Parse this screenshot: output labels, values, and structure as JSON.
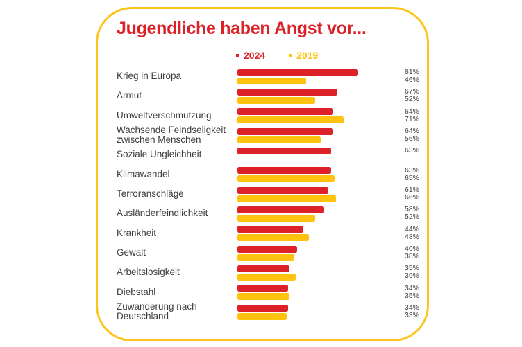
{
  "card": {
    "border_color": "#FCC41D",
    "background": "#FFFFFF"
  },
  "chart": {
    "title": "Jugendliche haben Angst vor...",
    "title_color": "#DC2128",
    "legend": [
      {
        "label": "2024",
        "color": "#DC2128"
      },
      {
        "label": "2019",
        "color": "#FFC20E"
      }
    ],
    "text_color": "#3E3E3D"
  },
  "chart_data": {
    "type": "bar",
    "orientation": "horizontal",
    "title": "Jugendliche haben Angst vor...",
    "categories": [
      "Krieg in Europa",
      "Armut",
      "Umweltverschmutzung",
      "Wachsende Feindseligkeit\nzwischen Menschen",
      "Soziale Ungleichheit",
      "Klimawandel",
      "Terroranschläge",
      "Ausländerfeindlichkeit",
      "Krankheit",
      "Gewalt",
      "Arbeitslosigkeit",
      "Diebstahl",
      "Zuwanderung nach\nDeutschland"
    ],
    "series": [
      {
        "name": "2024",
        "color": "#DC2128",
        "values": [
          81,
          67,
          64,
          64,
          63,
          63,
          61,
          58,
          44,
          40,
          35,
          34,
          34
        ]
      },
      {
        "name": "2019",
        "color": "#FFC20E",
        "values": [
          46,
          52,
          71,
          56,
          null,
          65,
          66,
          52,
          48,
          38,
          39,
          35,
          33
        ]
      }
    ],
    "value_suffix": "%",
    "xlim": [
      0,
      100
    ],
    "grid": false,
    "legend_position": "top"
  }
}
